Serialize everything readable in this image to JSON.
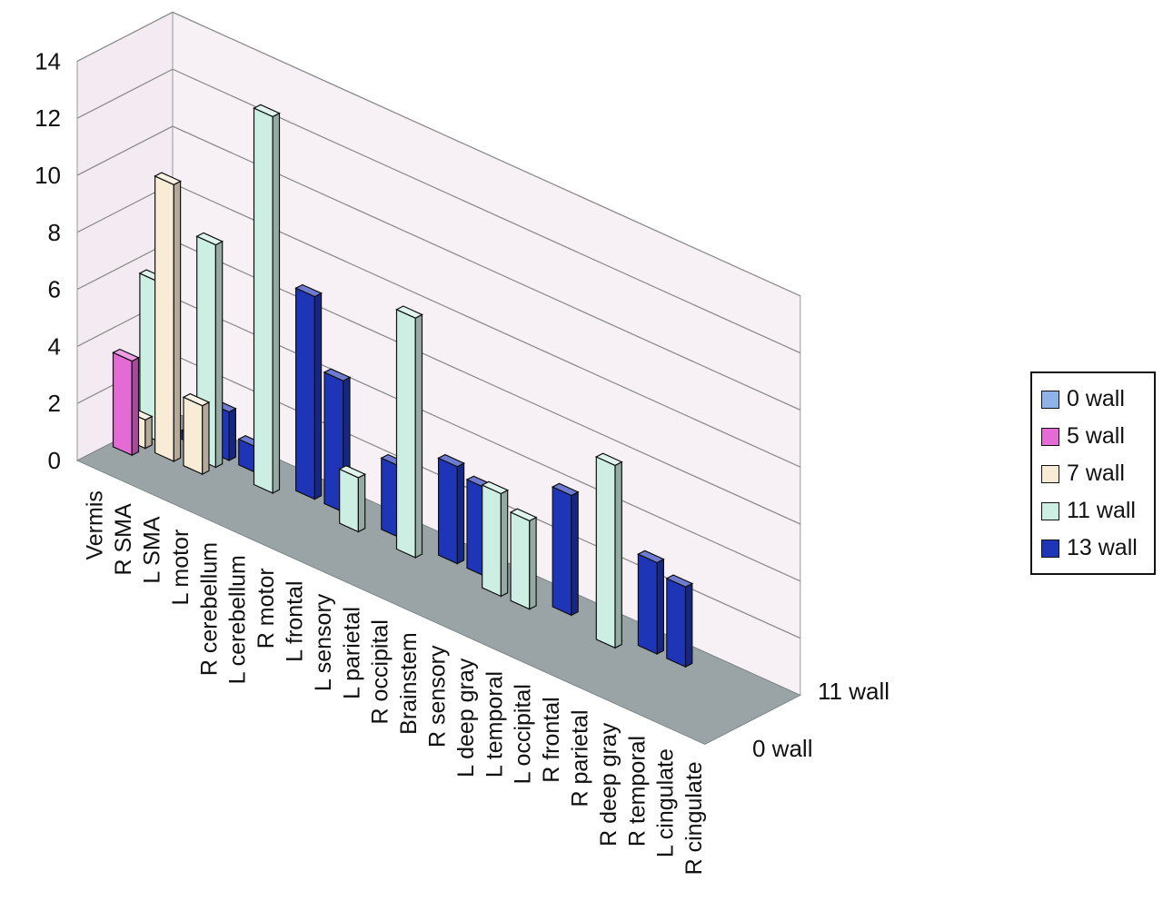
{
  "chart_data": {
    "type": "bar",
    "subtype": "3d-clustered-depth",
    "title": "",
    "xlabel": "",
    "ylabel": "",
    "ylim": [
      0,
      14
    ],
    "yticks": [
      0,
      2,
      4,
      6,
      8,
      10,
      12,
      14
    ],
    "grid": true,
    "legend_position": "right",
    "categories": [
      "Vermis",
      "R SMA",
      "L SMA",
      "L motor",
      "R cerebellum",
      "L cerebellum",
      "R motor",
      "L frontal",
      "L sensory",
      "L parietal",
      "R occipital",
      "Brainstem",
      "R sensory",
      "L deep gray",
      "L temporal",
      "L occipital",
      "R frontal",
      "R parietal",
      "R deep gray",
      "R temporal",
      "L cingulate",
      "R cingulate"
    ],
    "depth_labels": [
      "0 wall",
      "11 wall"
    ],
    "series": [
      {
        "name": "0 wall",
        "color": "#8fb3e8",
        "values": [
          0,
          0,
          0,
          0,
          0,
          0,
          0,
          0,
          0,
          0,
          0,
          0,
          0,
          0,
          0,
          0,
          0,
          0,
          0,
          0,
          0,
          0
        ]
      },
      {
        "name": "5 wall",
        "color": "#e46ad6",
        "values": [
          3.3,
          0,
          0,
          0,
          0,
          0,
          0,
          0,
          0,
          0,
          0,
          0,
          0,
          0,
          0,
          0,
          0,
          0,
          0,
          0,
          0,
          0
        ]
      },
      {
        "name": "7 wall",
        "color": "#f8ecd6",
        "values": [
          1.0,
          9.7,
          2.4,
          0,
          0,
          0,
          0,
          0,
          0,
          0,
          0,
          0,
          0,
          0,
          0,
          0,
          0,
          0,
          0,
          0,
          0,
          0
        ]
      },
      {
        "name": "11 wall",
        "color": "#cdeee2",
        "values": [
          5.6,
          0,
          7.8,
          0,
          13.2,
          0,
          0,
          1.9,
          0,
          8.4,
          0,
          0,
          3.6,
          3.1,
          0,
          0,
          6.4,
          0,
          0,
          0,
          0,
          0
        ]
      },
      {
        "name": "13 wall",
        "color": "#1f35b8",
        "values": [
          0,
          0.3,
          1.7,
          0.9,
          0,
          7.1,
          4.6,
          0,
          2.5,
          0,
          3.4,
          3.1,
          0,
          0,
          4.2,
          0,
          0,
          3.2,
          2.8,
          0,
          0,
          0
        ]
      }
    ]
  }
}
